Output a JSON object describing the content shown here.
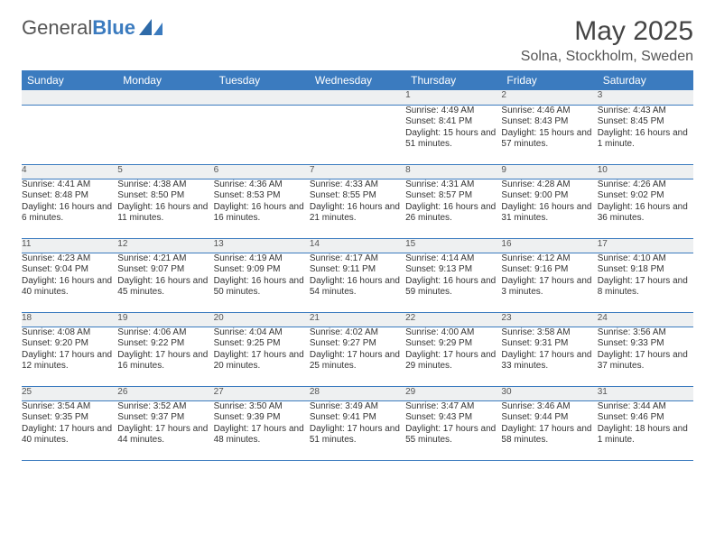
{
  "logo": {
    "text1": "General",
    "text2": "Blue"
  },
  "title": {
    "month_year": "May 2025",
    "location": "Solna, Stockholm, Sweden"
  },
  "colors": {
    "header_bg": "#3b7bbf",
    "daynum_bg": "#eef0f1",
    "rule": "#3b7bbf"
  },
  "dow": [
    "Sunday",
    "Monday",
    "Tuesday",
    "Wednesday",
    "Thursday",
    "Friday",
    "Saturday"
  ],
  "weeks": [
    [
      null,
      null,
      null,
      null,
      {
        "n": "1",
        "sr": "4:49 AM",
        "ss": "8:41 PM",
        "dl": "15 hours and 51 minutes."
      },
      {
        "n": "2",
        "sr": "4:46 AM",
        "ss": "8:43 PM",
        "dl": "15 hours and 57 minutes."
      },
      {
        "n": "3",
        "sr": "4:43 AM",
        "ss": "8:45 PM",
        "dl": "16 hours and 1 minute."
      }
    ],
    [
      {
        "n": "4",
        "sr": "4:41 AM",
        "ss": "8:48 PM",
        "dl": "16 hours and 6 minutes."
      },
      {
        "n": "5",
        "sr": "4:38 AM",
        "ss": "8:50 PM",
        "dl": "16 hours and 11 minutes."
      },
      {
        "n": "6",
        "sr": "4:36 AM",
        "ss": "8:53 PM",
        "dl": "16 hours and 16 minutes."
      },
      {
        "n": "7",
        "sr": "4:33 AM",
        "ss": "8:55 PM",
        "dl": "16 hours and 21 minutes."
      },
      {
        "n": "8",
        "sr": "4:31 AM",
        "ss": "8:57 PM",
        "dl": "16 hours and 26 minutes."
      },
      {
        "n": "9",
        "sr": "4:28 AM",
        "ss": "9:00 PM",
        "dl": "16 hours and 31 minutes."
      },
      {
        "n": "10",
        "sr": "4:26 AM",
        "ss": "9:02 PM",
        "dl": "16 hours and 36 minutes."
      }
    ],
    [
      {
        "n": "11",
        "sr": "4:23 AM",
        "ss": "9:04 PM",
        "dl": "16 hours and 40 minutes."
      },
      {
        "n": "12",
        "sr": "4:21 AM",
        "ss": "9:07 PM",
        "dl": "16 hours and 45 minutes."
      },
      {
        "n": "13",
        "sr": "4:19 AM",
        "ss": "9:09 PM",
        "dl": "16 hours and 50 minutes."
      },
      {
        "n": "14",
        "sr": "4:17 AM",
        "ss": "9:11 PM",
        "dl": "16 hours and 54 minutes."
      },
      {
        "n": "15",
        "sr": "4:14 AM",
        "ss": "9:13 PM",
        "dl": "16 hours and 59 minutes."
      },
      {
        "n": "16",
        "sr": "4:12 AM",
        "ss": "9:16 PM",
        "dl": "17 hours and 3 minutes."
      },
      {
        "n": "17",
        "sr": "4:10 AM",
        "ss": "9:18 PM",
        "dl": "17 hours and 8 minutes."
      }
    ],
    [
      {
        "n": "18",
        "sr": "4:08 AM",
        "ss": "9:20 PM",
        "dl": "17 hours and 12 minutes."
      },
      {
        "n": "19",
        "sr": "4:06 AM",
        "ss": "9:22 PM",
        "dl": "17 hours and 16 minutes."
      },
      {
        "n": "20",
        "sr": "4:04 AM",
        "ss": "9:25 PM",
        "dl": "17 hours and 20 minutes."
      },
      {
        "n": "21",
        "sr": "4:02 AM",
        "ss": "9:27 PM",
        "dl": "17 hours and 25 minutes."
      },
      {
        "n": "22",
        "sr": "4:00 AM",
        "ss": "9:29 PM",
        "dl": "17 hours and 29 minutes."
      },
      {
        "n": "23",
        "sr": "3:58 AM",
        "ss": "9:31 PM",
        "dl": "17 hours and 33 minutes."
      },
      {
        "n": "24",
        "sr": "3:56 AM",
        "ss": "9:33 PM",
        "dl": "17 hours and 37 minutes."
      }
    ],
    [
      {
        "n": "25",
        "sr": "3:54 AM",
        "ss": "9:35 PM",
        "dl": "17 hours and 40 minutes."
      },
      {
        "n": "26",
        "sr": "3:52 AM",
        "ss": "9:37 PM",
        "dl": "17 hours and 44 minutes."
      },
      {
        "n": "27",
        "sr": "3:50 AM",
        "ss": "9:39 PM",
        "dl": "17 hours and 48 minutes."
      },
      {
        "n": "28",
        "sr": "3:49 AM",
        "ss": "9:41 PM",
        "dl": "17 hours and 51 minutes."
      },
      {
        "n": "29",
        "sr": "3:47 AM",
        "ss": "9:43 PM",
        "dl": "17 hours and 55 minutes."
      },
      {
        "n": "30",
        "sr": "3:46 AM",
        "ss": "9:44 PM",
        "dl": "17 hours and 58 minutes."
      },
      {
        "n": "31",
        "sr": "3:44 AM",
        "ss": "9:46 PM",
        "dl": "18 hours and 1 minute."
      }
    ]
  ],
  "labels": {
    "sunrise": "Sunrise:",
    "sunset": "Sunset:",
    "daylight": "Daylight:"
  }
}
